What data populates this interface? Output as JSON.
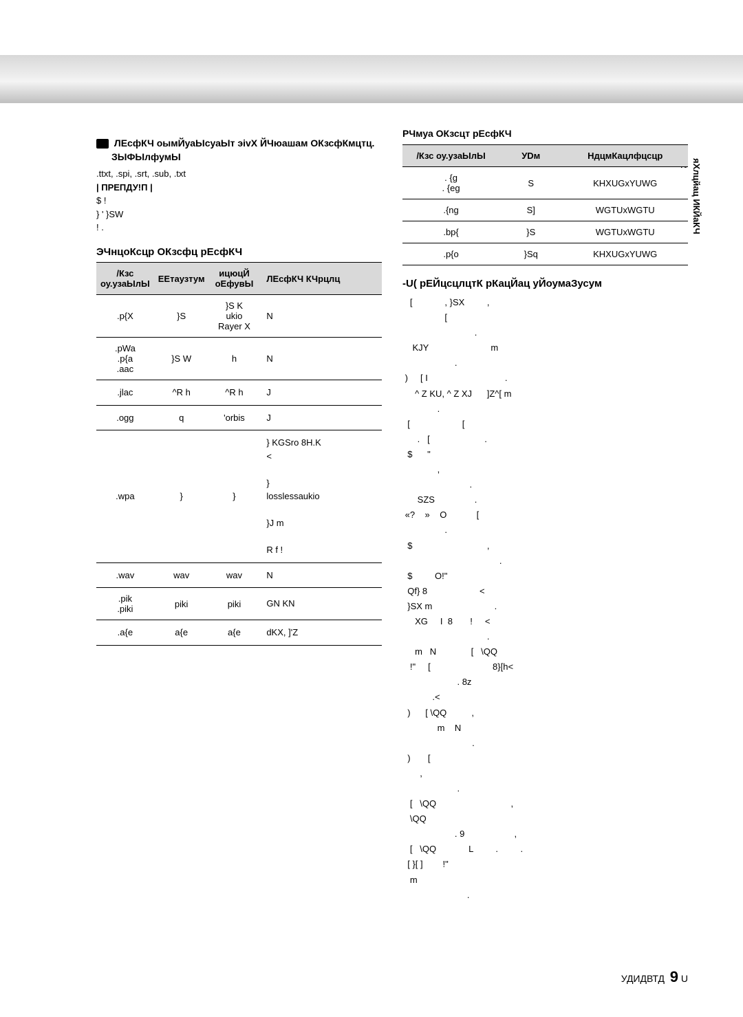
{
  "side": {
    "num": "02",
    "label": "яХлцйац ИКЙаКЧ"
  },
  "footer": {
    "text": "УДИДВТД",
    "page": "9",
    "suffix": "U"
  },
  "left": {
    "headline_prefix": "ЛЕсфКЧ оымЙуаЫсуаЫт эivX ЙЧюашам ОКзсфКмцтц.",
    "headline_sub": "ЗЫФЫлфумЫ",
    "line_ext": ".ttxt, .spi, .srt, .sub, .txt",
    "line_warn": "| ПРЕПДУ!П |",
    "line_a": " $                    !",
    "line_b": "             } '    }SW",
    "line_c": " !                  .",
    "audio_title": "ЭЧнцоКсцр ОКзсфц рЕсфКЧ",
    "table1": {
      "headers": [
        "/Кзс оу.узаЫлЫ",
        "ЕЕтаузтум",
        "ицюцЙ оЕфувЫ",
        "ЛЕсфКЧ КЧрцлц"
      ],
      "rows": [
        {
          "c1": ".p{X",
          "c2": "}S",
          "c3": "}S K\nukio\nRayer X",
          "c4": "N"
        },
        {
          "c1": ".pWa\n.p{a\n.aac",
          "c2": "}S W",
          "c3": "h",
          "c4": "N"
        },
        {
          "c1": ".jlac",
          "c2": "^R h",
          "c3": "^R h",
          "c4": "J"
        },
        {
          "c1": ".ogg",
          "c2": "q",
          "c3": "'orbis",
          "c4": "J"
        },
        {
          "c1": ".wpa",
          "c2": "}",
          "c3": "}",
          "c4": "}   KGSro 8H.K\n                       <\n\n                  }\n     losslessaukio\n\n}J    m\n\n   R f   !"
        },
        {
          "c1": ".wav",
          "c2": "wav",
          "c3": "wav",
          "c4": "N"
        },
        {
          "c1": ".pik\n.piki",
          "c2": "piki",
          "c3": "piki",
          "c4": "GN       KN"
        },
        {
          "c1": ".a{e",
          "c2": "a{e",
          "c3": "a{e",
          "c4": "dKX, ]'Z"
        }
      ]
    }
  },
  "right": {
    "photo_title": "РЧмуа ОКзсцт рЕсфКЧ",
    "table2": {
      "headers": [
        "/Кзс оу.узаЫлЫ",
        "УDм",
        "НдцмКацлфцсцр"
      ],
      "rows": [
        {
          "c1": ". {g\n. {eg",
          "c2": "S",
          "c3": "KHXUGxYUWG"
        },
        {
          "c1": ".{ng",
          "c2": "S]",
          "c3": "WGTUxWGTU"
        },
        {
          "c1": ".bp{",
          "c2": "}S",
          "c3": "WGTUxWGTU"
        },
        {
          "c1": ".p{o",
          "c2": "}Sq",
          "c3": "KHXUGxYUWG"
        }
      ]
    },
    "notes_title": "-U( pЕЙцсцлцтК рКацЙац уЙоумаЗусум",
    "notes_body": "   [             , }SX         ,\n                 [\n                             .\n    KJY                         m\n                     .\n )     [ I                               .\n     ^ Z KU, ^ Z XJ      ]Z^[ m\n              .\n  [                     [\n      .   [                      .\n  $      \"\n              ,\n                           .\n      SZS                .\n «?    »    O            [\n                 .\n  $                              ,\n                                       .\n  $         O!\"\n  Qf} 8                     <\n  }SX m                         .\n     XG     I  8       !     <\n                                  .\n     m   N              [   \\QQ\n   !\"     [                         8}[h<\n                      . 8z\n            .<\n  )      [ \\QQ          ,\n              m    N\n                            .\n  )       [\n       ,\n                      .\n   [   \\QQ                              ,\n   \\QQ\n                     . 9                    ,\n   [   \\QQ             L         .         .\n  [ }[ ]        !\"\n   m\n                          ."
  }
}
